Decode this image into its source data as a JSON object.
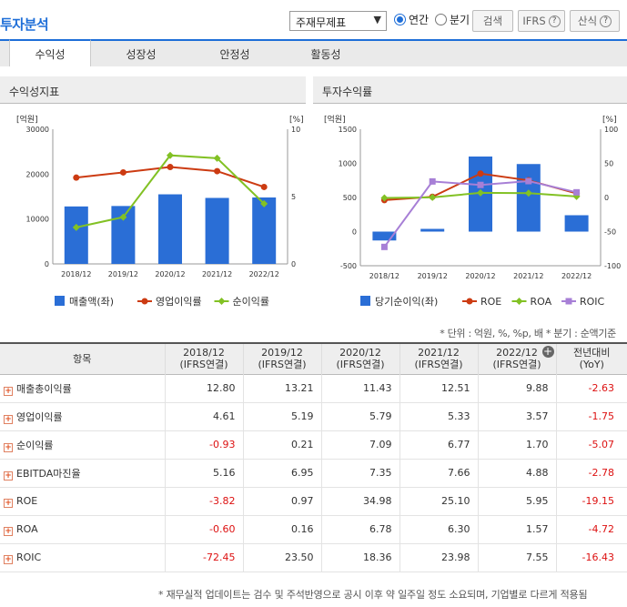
{
  "header": {
    "title": "투자분석",
    "select_value": "주재무제표",
    "radio_annual": "연간",
    "radio_quarter": "분기",
    "search_label": "검색",
    "ifrs_label": "IFRS",
    "formula_label": "산식",
    "help_glyph": "?"
  },
  "tabs": [
    {
      "label": "수익성"
    },
    {
      "label": "성장성"
    },
    {
      "label": "안정성"
    },
    {
      "label": "활동성"
    }
  ],
  "left_panel": {
    "title": "수익성지표"
  },
  "right_panel": {
    "title": "투자수익률"
  },
  "chart_data": [
    {
      "type": "bar",
      "title": "수익성지표",
      "categories": [
        "2018/12",
        "2019/12",
        "2020/12",
        "2021/12",
        "2022/12"
      ],
      "y_left_label": "[억원]",
      "y_right_label": "[%]",
      "y_left_ticks": [
        "30000",
        "20000",
        "10000",
        "0"
      ],
      "y_right_ticks": [
        "10",
        "5",
        "0"
      ],
      "ylim_left": [
        0,
        30000
      ],
      "ylim_right": [
        -5,
        10
      ],
      "series": [
        {
          "name": "매출액(좌)",
          "kind": "bar",
          "axis": "left",
          "color": "#2a6ed6",
          "values": [
            12800,
            12900,
            15500,
            14700,
            14800
          ]
        },
        {
          "name": "영업이익률",
          "kind": "line",
          "axis": "right",
          "color": "#cc3b12",
          "values": [
            4.61,
            5.19,
            5.79,
            5.33,
            3.57
          ]
        },
        {
          "name": "순이익률",
          "kind": "line",
          "axis": "right",
          "color": "#82c124",
          "values": [
            -0.93,
            0.21,
            7.09,
            6.77,
            1.7
          ]
        }
      ]
    },
    {
      "type": "bar",
      "title": "투자수익률",
      "categories": [
        "2018/12",
        "2019/12",
        "2020/12",
        "2021/12",
        "2022/12"
      ],
      "y_left_label": "[억원]",
      "y_right_label": "[%]",
      "y_left_ticks": [
        "1500",
        "1000",
        "500",
        "0",
        "-500"
      ],
      "y_right_ticks": [
        "100",
        "50",
        "0",
        "-50",
        "-100"
      ],
      "ylim_left": [
        -500,
        1500
      ],
      "ylim_right": [
        -100,
        100
      ],
      "series": [
        {
          "name": "당기순이익(좌)",
          "kind": "bar",
          "axis": "left",
          "color": "#2a6ed6",
          "values": [
            -130,
            40,
            1100,
            990,
            240
          ]
        },
        {
          "name": "ROE",
          "kind": "line",
          "axis": "right",
          "color": "#cc3b12",
          "values": [
            -3.82,
            0.97,
            34.98,
            25.1,
            5.95
          ]
        },
        {
          "name": "ROA",
          "kind": "line",
          "axis": "right",
          "color": "#82c124",
          "values": [
            -0.6,
            0.16,
            6.78,
            6.3,
            1.57
          ]
        },
        {
          "name": "ROIC",
          "kind": "line",
          "axis": "right",
          "color": "#a77fd6",
          "values": [
            -72.45,
            23.5,
            18.36,
            23.98,
            7.55
          ]
        }
      ]
    }
  ],
  "note": "* 단위 : 억원, %, %p, 배     * 분기 : 순액기준",
  "table": {
    "headers": {
      "item": "항목",
      "cols": [
        "2018/12",
        "2019/12",
        "2020/12",
        "2021/12",
        "2022/12"
      ],
      "sub": "(IFRS연결)",
      "cmp_top": "전년대비",
      "cmp_bottom": "(YoY)",
      "add_glyph": "+"
    },
    "rows": [
      {
        "label": "매출총이익률",
        "values": [
          "12.80",
          "13.21",
          "11.43",
          "12.51",
          "9.88"
        ],
        "yoy": "-2.63"
      },
      {
        "label": "영업이익률",
        "values": [
          "4.61",
          "5.19",
          "5.79",
          "5.33",
          "3.57"
        ],
        "yoy": "-1.75"
      },
      {
        "label": "순이익률",
        "values": [
          "-0.93",
          "0.21",
          "7.09",
          "6.77",
          "1.70"
        ],
        "yoy": "-5.07"
      },
      {
        "label": "EBITDA마진율",
        "values": [
          "5.16",
          "6.95",
          "7.35",
          "7.66",
          "4.88"
        ],
        "yoy": "-2.78"
      },
      {
        "label": "ROE",
        "values": [
          "-3.82",
          "0.97",
          "34.98",
          "25.10",
          "5.95"
        ],
        "yoy": "-19.15"
      },
      {
        "label": "ROA",
        "values": [
          "-0.60",
          "0.16",
          "6.78",
          "6.30",
          "1.57"
        ],
        "yoy": "-4.72"
      },
      {
        "label": "ROIC",
        "values": [
          "-72.45",
          "23.50",
          "18.36",
          "23.98",
          "7.55"
        ],
        "yoy": "-16.43"
      }
    ]
  },
  "footnote": "* 재무실적 업데이트는 검수 및 주석반영으로 공시 이후 약 일주일 정도 소요되며, 기업별로 다르게 적용됨"
}
